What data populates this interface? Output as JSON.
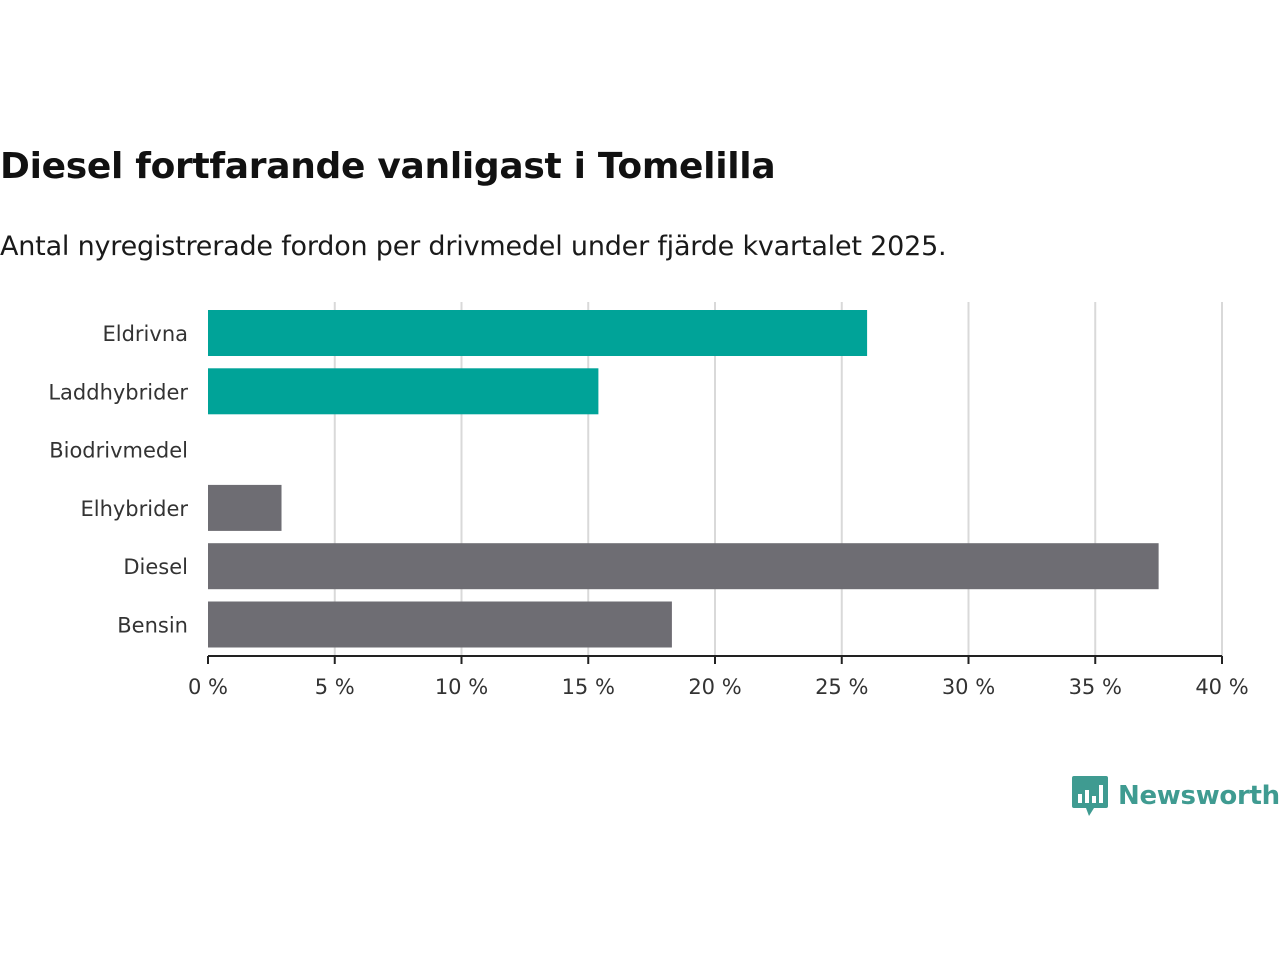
{
  "colors": {
    "electric": "#00a398",
    "fossil": "#6e6d73",
    "grid": "#d9d9d9",
    "axis": "#222222",
    "brand": "#3f9b91"
  },
  "chart_data": {
    "type": "bar",
    "orientation": "horizontal",
    "title": "Diesel fortfarande vanligast i Tomelilla",
    "subtitle": "Antal nyregistrerade fordon per drivmedel under fjärde kvartalet 2025.",
    "categories": [
      "Eldrivna",
      "Laddhybrider",
      "Biodrivmedel",
      "Elhybrider",
      "Diesel",
      "Bensin"
    ],
    "values": [
      26,
      15.4,
      0,
      2.9,
      37.5,
      18.3
    ],
    "groups": [
      "electric",
      "electric",
      "fossil",
      "fossil",
      "fossil",
      "fossil"
    ],
    "xlim": [
      0,
      40
    ],
    "ticks": [
      0,
      5,
      10,
      15,
      20,
      25,
      30,
      35,
      40
    ],
    "tick_labels": [
      "0 %",
      "5 %",
      "10 %",
      "15 %",
      "20 %",
      "25 %",
      "30 %",
      "35 %",
      "40 %"
    ],
    "grid": true
  },
  "logo": {
    "text": "Newsworthy",
    "icon": "bar-chart-speech-bubble-icon"
  }
}
